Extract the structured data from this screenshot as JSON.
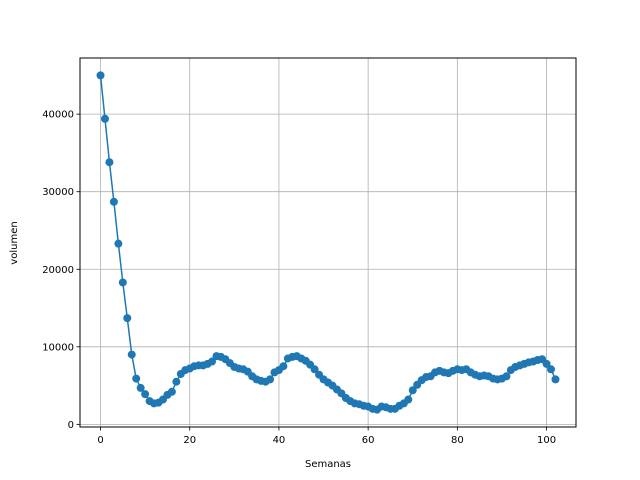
{
  "chart_data": {
    "type": "line",
    "title": "",
    "xlabel": "Semanas",
    "ylabel": "volumen",
    "xlim": [
      -4.6,
      106.6
    ],
    "ylim": [
      -340,
      47240
    ],
    "xticks": [
      0,
      20,
      40,
      60,
      80,
      100
    ],
    "yticks": [
      0,
      10000,
      20000,
      30000,
      40000
    ],
    "grid": true,
    "marker": "circle",
    "series": [
      {
        "color": "#1f77b4",
        "x": [
          0,
          1,
          2,
          3,
          4,
          5,
          6,
          7,
          8,
          9,
          10,
          11,
          12,
          13,
          14,
          15,
          16,
          17,
          18,
          19,
          20,
          21,
          22,
          23,
          24,
          25,
          26,
          27,
          28,
          29,
          30,
          31,
          32,
          33,
          34,
          35,
          36,
          37,
          38,
          39,
          40,
          41,
          42,
          43,
          44,
          45,
          46,
          47,
          48,
          49,
          50,
          51,
          52,
          53,
          54,
          55,
          56,
          57,
          58,
          59,
          60,
          61,
          62,
          63,
          64,
          65,
          66,
          67,
          68,
          69,
          70,
          71,
          72,
          73,
          74,
          75,
          76,
          77,
          78,
          79,
          80,
          81,
          82,
          83,
          84,
          85,
          86,
          87,
          88,
          89,
          90,
          91,
          92,
          93,
          94,
          95,
          96,
          97,
          98,
          99,
          100,
          101,
          102
        ],
        "y": [
          45000,
          39400,
          33800,
          28700,
          23300,
          18300,
          13700,
          9000,
          5900,
          4700,
          3900,
          3000,
          2700,
          2800,
          3200,
          3800,
          4200,
          5500,
          6500,
          7000,
          7200,
          7500,
          7600,
          7600,
          7800,
          8100,
          8800,
          8700,
          8400,
          7900,
          7400,
          7200,
          7100,
          6800,
          6200,
          5800,
          5600,
          5500,
          5800,
          6700,
          7000,
          7500,
          8500,
          8700,
          8800,
          8500,
          8200,
          7700,
          7100,
          6400,
          5800,
          5400,
          5000,
          4500,
          4000,
          3400,
          3000,
          2700,
          2600,
          2400,
          2300,
          2000,
          1900,
          2300,
          2200,
          2000,
          2000,
          2400,
          2700,
          3200,
          4400,
          5100,
          5700,
          6100,
          6200,
          6700,
          6900,
          6700,
          6600,
          6900,
          7100,
          7000,
          7100,
          6700,
          6400,
          6200,
          6300,
          6200,
          5900,
          5800,
          5900,
          6200,
          7000,
          7400,
          7600,
          7800,
          8000,
          8100,
          8300,
          8400,
          7800,
          7100,
          5800
        ]
      }
    ]
  }
}
